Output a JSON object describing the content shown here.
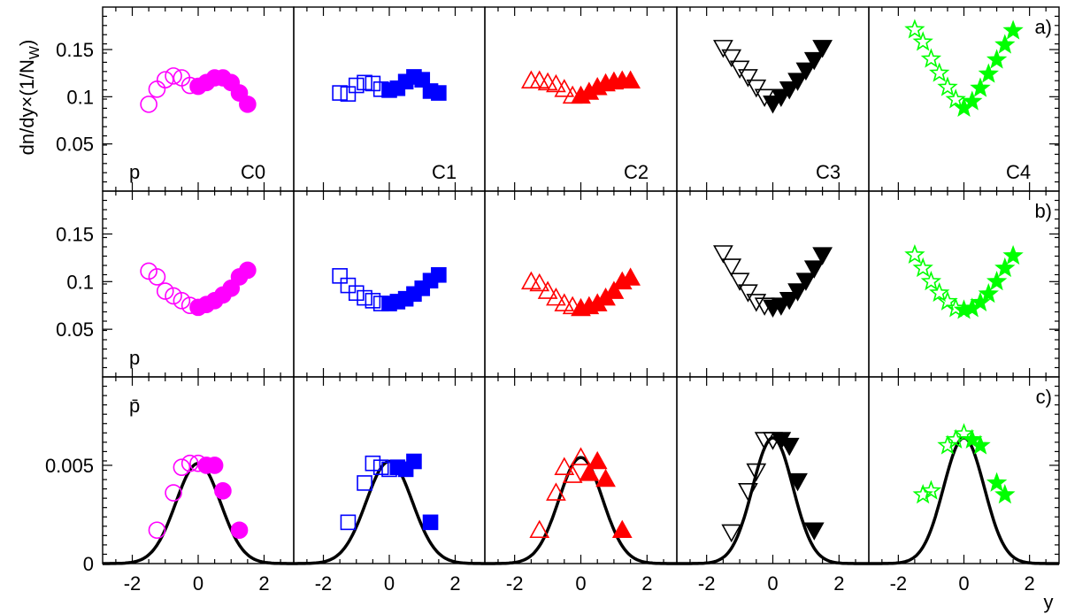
{
  "chart_data": {
    "type": "scatter",
    "ylabel": "dn/dy×(1/N_W)",
    "xlabel": "y",
    "xlim": [
      -2.9,
      2.9
    ],
    "x_ticks": [
      -2,
      0,
      2
    ],
    "centrality_labels": [
      "C0",
      "C1",
      "C2",
      "C3",
      "C4"
    ],
    "colors": [
      "#ff00ff",
      "#0000ff",
      "#ff0000",
      "#000000",
      "#00ff00"
    ],
    "markers": [
      "circle",
      "square",
      "triangle-up",
      "triangle-down",
      "star"
    ],
    "rows": [
      {
        "tag": "a)",
        "particle": "p",
        "ylim": [
          0,
          0.195
        ],
        "y_ticks": [
          0.05,
          0.1,
          0.15
        ],
        "y_tick_labels": [
          "0.05",
          "0.1",
          "0.15"
        ],
        "panels": [
          {
            "x": [
              -1.5,
              -1.25,
              -1.0,
              -0.75,
              -0.5,
              -0.25,
              0,
              0.25,
              0.5,
              0.75,
              1.0,
              1.25,
              1.5
            ],
            "y": [
              0.092,
              0.108,
              0.118,
              0.122,
              0.12,
              0.112,
              0.111,
              0.115,
              0.12,
              0.12,
              0.115,
              0.104,
              0.092
            ]
          },
          {
            "x": [
              -1.5,
              -1.25,
              -1.0,
              -0.75,
              -0.5,
              -0.25,
              0,
              0.25,
              0.5,
              0.75,
              1.0,
              1.25,
              1.5
            ],
            "y": [
              0.104,
              0.103,
              0.112,
              0.115,
              0.114,
              0.108,
              0.107,
              0.109,
              0.116,
              0.121,
              0.118,
              0.106,
              0.104
            ]
          },
          {
            "x": [
              -1.5,
              -1.25,
              -1.0,
              -0.75,
              -0.5,
              -0.25,
              0,
              0.25,
              0.5,
              0.75,
              1.0,
              1.25,
              1.5
            ],
            "y": [
              0.117,
              0.117,
              0.115,
              0.113,
              0.108,
              0.101,
              0.101,
              0.105,
              0.11,
              0.114,
              0.116,
              0.117,
              0.117
            ]
          },
          {
            "x": [
              -1.5,
              -1.25,
              -1.0,
              -0.75,
              -0.5,
              -0.25,
              0,
              0.25,
              0.5,
              0.75,
              1.0,
              1.25,
              1.5
            ],
            "y": [
              0.152,
              0.142,
              0.13,
              0.121,
              0.11,
              0.1,
              0.093,
              0.1,
              0.108,
              0.117,
              0.128,
              0.139,
              0.152
            ]
          },
          {
            "x": [
              -1.5,
              -1.25,
              -1.0,
              -0.75,
              -0.5,
              -0.25,
              0,
              0.25,
              0.5,
              0.75,
              1.0,
              1.25,
              1.5
            ],
            "y": [
              0.171,
              0.158,
              0.14,
              0.125,
              0.11,
              0.097,
              0.088,
              0.095,
              0.109,
              0.124,
              0.139,
              0.155,
              0.17
            ]
          }
        ]
      },
      {
        "tag": "b)",
        "particle": "p",
        "ylim": [
          0,
          0.195
        ],
        "y_ticks": [
          0.05,
          0.1,
          0.15
        ],
        "y_tick_labels": [
          "0.05",
          "0.1",
          "0.15"
        ],
        "panels": [
          {
            "x": [
              -1.5,
              -1.25,
              -1.0,
              -0.75,
              -0.5,
              -0.25,
              0,
              0.25,
              0.5,
              0.75,
              1.0,
              1.25,
              1.5
            ],
            "y": [
              0.111,
              0.105,
              0.09,
              0.085,
              0.08,
              0.075,
              0.073,
              0.076,
              0.08,
              0.086,
              0.093,
              0.105,
              0.112
            ]
          },
          {
            "x": [
              -1.5,
              -1.25,
              -1.0,
              -0.75,
              -0.5,
              -0.25,
              0,
              0.25,
              0.5,
              0.75,
              1.0,
              1.25,
              1.5
            ],
            "y": [
              0.106,
              0.096,
              0.088,
              0.083,
              0.08,
              0.077,
              0.077,
              0.079,
              0.082,
              0.087,
              0.093,
              0.101,
              0.107
            ]
          },
          {
            "x": [
              -1.5,
              -1.25,
              -1.0,
              -0.75,
              -0.5,
              -0.25,
              0,
              0.25,
              0.5,
              0.75,
              1.0,
              1.25,
              1.5
            ],
            "y": [
              0.1,
              0.098,
              0.09,
              0.083,
              0.077,
              0.074,
              0.072,
              0.074,
              0.077,
              0.083,
              0.09,
              0.1,
              0.104
            ]
          },
          {
            "x": [
              -1.5,
              -1.25,
              -1.0,
              -0.75,
              -0.5,
              -0.25,
              0,
              0.25,
              0.5,
              0.75,
              1.0,
              1.25,
              1.5
            ],
            "y": [
              0.13,
              0.116,
              0.101,
              0.089,
              0.079,
              0.075,
              0.073,
              0.075,
              0.081,
              0.09,
              0.101,
              0.114,
              0.128
            ]
          },
          {
            "x": [
              -1.5,
              -1.25,
              -1.0,
              -0.75,
              -0.5,
              -0.25,
              0,
              0.25,
              0.5,
              0.75,
              1.0,
              1.25,
              1.5
            ],
            "y": [
              0.128,
              0.114,
              0.1,
              0.088,
              0.079,
              0.072,
              0.07,
              0.072,
              0.078,
              0.087,
              0.1,
              0.114,
              0.127
            ]
          }
        ]
      },
      {
        "tag": "c)",
        "particle": "p̄",
        "ylim": [
          0,
          0.0095
        ],
        "y_ticks": [
          0,
          0.005
        ],
        "y_tick_labels": [
          "0",
          "0.005"
        ],
        "panels": [
          {
            "x": [
              -1.25,
              -0.75,
              -0.5,
              -0.25,
              0,
              0.25,
              0.5,
              0.75,
              1.25
            ],
            "y": [
              0.0017,
              0.0036,
              0.0049,
              0.0051,
              0.0051,
              0.005,
              0.005,
              0.0037,
              0.0017
            ],
            "curve": {
              "amp": 0.0051,
              "sigma": 0.68
            }
          },
          {
            "x": [
              -1.25,
              -0.75,
              -0.5,
              -0.25,
              0,
              0.25,
              0.5,
              0.75,
              1.25
            ],
            "y": [
              0.0021,
              0.0041,
              0.0051,
              0.0049,
              0.0048,
              0.0049,
              0.0048,
              0.0052,
              0.0021
            ],
            "curve": {
              "amp": 0.0052,
              "sigma": 0.7
            }
          },
          {
            "x": [
              -1.25,
              -0.75,
              -0.5,
              -0.25,
              0,
              0.25,
              0.5,
              0.75,
              1.25
            ],
            "y": [
              0.0017,
              0.0036,
              0.0049,
              0.0045,
              0.0054,
              0.0046,
              0.0052,
              0.0043,
              0.0017
            ],
            "curve": {
              "amp": 0.0054,
              "sigma": 0.66
            }
          },
          {
            "x": [
              -1.25,
              -0.75,
              -0.5,
              -0.25,
              0,
              0.25,
              0.5,
              0.75,
              1.25
            ],
            "y": [
              0.0016,
              0.0037,
              0.0047,
              0.0063,
              0.0063,
              0.0063,
              0.006,
              0.0042,
              0.0017
            ],
            "curve": {
              "amp": 0.0064,
              "sigma": 0.61
            }
          },
          {
            "x": [
              -1.25,
              -1.0,
              -0.5,
              -0.25,
              0,
              0.25,
              0.5,
              1.0,
              1.25
            ],
            "y": [
              0.0035,
              0.0037,
              0.006,
              0.0063,
              0.0066,
              0.0063,
              0.006,
              0.0041,
              0.0035
            ],
            "curve": {
              "amp": 0.0064,
              "sigma": 0.62
            }
          }
        ]
      }
    ]
  }
}
